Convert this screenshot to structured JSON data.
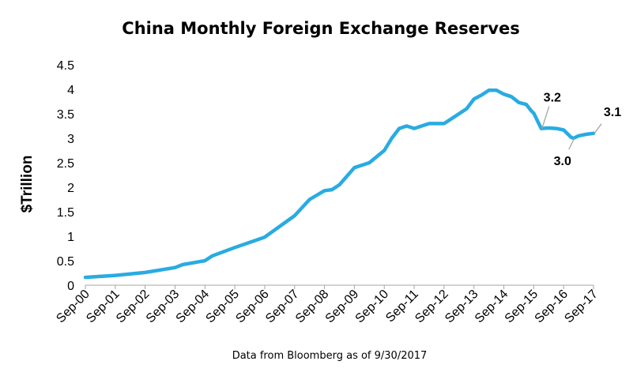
{
  "chart_data": {
    "type": "line",
    "title": "China Monthly Foreign Exchange Reserves",
    "ylabel": "$Trillion",
    "xlabel": "",
    "note": "Data from Bloomberg as of 9/30/2017",
    "ylim": [
      0,
      4.5
    ],
    "yticks": [
      "0",
      "0.5",
      "1",
      "1.5",
      "2",
      "2.5",
      "3",
      "3.5",
      "4",
      "4.5"
    ],
    "xticks": [
      "Sep-00",
      "Sep-01",
      "Sep-02",
      "Sep-03",
      "Sep-04",
      "Sep-05",
      "Sep-06",
      "Sep-07",
      "Sep-08",
      "Sep-09",
      "Sep-10",
      "Sep-11",
      "Sep-12",
      "Sep-13",
      "Sep-14",
      "Sep-15",
      "Sep-16",
      "Sep-17"
    ],
    "grid": false,
    "line_color": "#29abe2",
    "series": [
      {
        "x": [
          "Sep-00",
          "Sep-01",
          "Sep-02",
          "Sep-03",
          "Dec-03",
          "Sep-04",
          "Dec-04",
          "Sep-05",
          "Sep-06",
          "Sep-07",
          "Mar-08",
          "Sep-08",
          "Dec-08",
          "Mar-09",
          "Sep-09",
          "Dec-09",
          "Mar-10",
          "Sep-10",
          "Dec-10",
          "Mar-11",
          "Jun-11",
          "Sep-11",
          "Dec-11",
          "Mar-12",
          "Sep-12",
          "Dec-12",
          "Mar-13",
          "Jun-13",
          "Sep-13",
          "Dec-13",
          "Mar-14",
          "Jun-14",
          "Sep-14",
          "Dec-14",
          "Mar-15",
          "Jun-15",
          "Aug-15",
          "Sep-15",
          "Dec-15",
          "Mar-16",
          "Jun-16",
          "Sep-16",
          "Dec-16",
          "Jan-17",
          "Mar-17",
          "Jun-17",
          "Sep-17"
        ],
        "values": [
          0.16,
          0.2,
          0.26,
          0.36,
          0.42,
          0.5,
          0.6,
          0.77,
          0.98,
          1.42,
          1.75,
          1.93,
          1.95,
          2.05,
          2.4,
          2.45,
          2.5,
          2.75,
          3.0,
          3.2,
          3.25,
          3.2,
          3.25,
          3.3,
          3.3,
          3.4,
          3.5,
          3.6,
          3.8,
          3.88,
          3.98,
          3.98,
          3.9,
          3.85,
          3.73,
          3.69,
          3.56,
          3.51,
          3.2,
          3.21,
          3.2,
          3.17,
          3.02,
          3.0,
          3.05,
          3.08,
          3.1
        ]
      }
    ],
    "annotations": [
      {
        "text": "3.2",
        "x": "Dec-15",
        "y": 3.2,
        "placement": "above"
      },
      {
        "text": "3.0",
        "x": "Jan-17",
        "y": 3.0,
        "placement": "below-left"
      },
      {
        "text": "3.1",
        "x": "Sep-17",
        "y": 3.1,
        "placement": "above-right"
      }
    ]
  }
}
